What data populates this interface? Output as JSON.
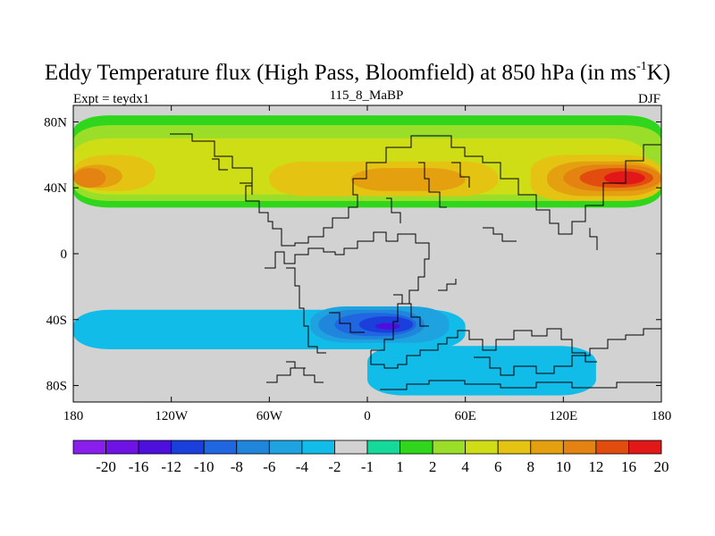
{
  "chart_data": {
    "type": "contour_map",
    "title_main": "Eddy Temperature flux (High Pass, Bloomfield) at 850 hPa (in ms",
    "title_sup": "-1",
    "title_end": "K)",
    "left_subtitle": "Expt = teydx1",
    "center_subtitle": "115_8_MaBP",
    "right_subtitle": "DJF",
    "x_ticks": [
      {
        "value": -180,
        "label": "180"
      },
      {
        "value": -120,
        "label": "120W"
      },
      {
        "value": -60,
        "label": "60W"
      },
      {
        "value": 0,
        "label": "0"
      },
      {
        "value": 60,
        "label": "60E"
      },
      {
        "value": 120,
        "label": "120E"
      },
      {
        "value": 180,
        "label": "180"
      }
    ],
    "y_ticks": [
      {
        "value": 80,
        "label": "80N"
      },
      {
        "value": 40,
        "label": "40N"
      },
      {
        "value": 0,
        "label": "0"
      },
      {
        "value": -40,
        "label": "40S"
      },
      {
        "value": -80,
        "label": "80S"
      }
    ],
    "xlim": [
      -180,
      180
    ],
    "ylim": [
      -90,
      90
    ],
    "colorbar_labels": [
      "-20",
      "-16",
      "-12",
      "-10",
      "-8",
      "-6",
      "-4",
      "-2",
      "-1",
      "1",
      "2",
      "4",
      "6",
      "8",
      "10",
      "12",
      "16",
      "20"
    ],
    "colorbar_colors": [
      "#8a1eed",
      "#6f12e6",
      "#4d0fdb",
      "#1a3fdb",
      "#1f66e0",
      "#1f86db",
      "#1fa3e0",
      "#11bde8",
      "#d2d2d2",
      "#14d99b",
      "#30d61b",
      "#9bde2a",
      "#cfdd16",
      "#e4c312",
      "#e5a010",
      "#e48311",
      "#e24c0e",
      "#e21818"
    ],
    "fields": [
      {
        "sign": "pos",
        "level": 1,
        "lat": [
          28,
          84
        ],
        "lon": [
          -180,
          180
        ]
      },
      {
        "sign": "pos",
        "level": 2,
        "lat": [
          32,
          78
        ],
        "lon": [
          -180,
          180
        ]
      },
      {
        "sign": "pos",
        "level": 4,
        "lat": [
          36,
          70
        ],
        "lon": [
          -180,
          170
        ]
      },
      {
        "sign": "pos",
        "level": 6,
        "lat": [
          38,
          60
        ],
        "lon": [
          -180,
          -130
        ]
      },
      {
        "sign": "pos",
        "level": 6,
        "lat": [
          35,
          56
        ],
        "lon": [
          -60,
          80
        ]
      },
      {
        "sign": "pos",
        "level": 6,
        "lat": [
          32,
          60
        ],
        "lon": [
          100,
          180
        ]
      },
      {
        "sign": "pos",
        "level": 8,
        "lat": [
          40,
          54
        ],
        "lon": [
          -180,
          -150
        ]
      },
      {
        "sign": "pos",
        "level": 8,
        "lat": [
          38,
          52
        ],
        "lon": [
          -10,
          60
        ]
      },
      {
        "sign": "pos",
        "level": 8,
        "lat": [
          35,
          56
        ],
        "lon": [
          110,
          180
        ]
      },
      {
        "sign": "pos",
        "level": 10,
        "lat": [
          40,
          52
        ],
        "lon": [
          -180,
          -160
        ]
      },
      {
        "sign": "pos",
        "level": 10,
        "lat": [
          38,
          54
        ],
        "lon": [
          120,
          180
        ]
      },
      {
        "sign": "pos",
        "level": 12,
        "lat": [
          40,
          52
        ],
        "lon": [
          130,
          175
        ]
      },
      {
        "sign": "pos",
        "level": 16,
        "lat": [
          42,
          50
        ],
        "lon": [
          145,
          170
        ]
      },
      {
        "sign": "neg",
        "level": 1,
        "lat": [
          -60,
          -30
        ],
        "lon": [
          -180,
          180
        ]
      },
      {
        "sign": "neg",
        "level": 2,
        "lat": [
          -58,
          -34
        ],
        "lon": [
          -180,
          60
        ]
      },
      {
        "sign": "neg",
        "level": 2,
        "lat": [
          -86,
          -56
        ],
        "lon": [
          0,
          140
        ]
      },
      {
        "sign": "neg",
        "level": 4,
        "lat": [
          -54,
          -32
        ],
        "lon": [
          -35,
          50
        ]
      },
      {
        "sign": "neg",
        "level": 6,
        "lat": [
          -52,
          -34
        ],
        "lon": [
          -30,
          35
        ]
      },
      {
        "sign": "neg",
        "level": 8,
        "lat": [
          -50,
          -36
        ],
        "lon": [
          -20,
          30
        ]
      },
      {
        "sign": "neg",
        "level": 10,
        "lat": [
          -48,
          -38
        ],
        "lon": [
          -5,
          28
        ]
      },
      {
        "sign": "neg",
        "level": 12,
        "lat": [
          -46,
          -42
        ],
        "lon": [
          5,
          20
        ]
      }
    ]
  }
}
